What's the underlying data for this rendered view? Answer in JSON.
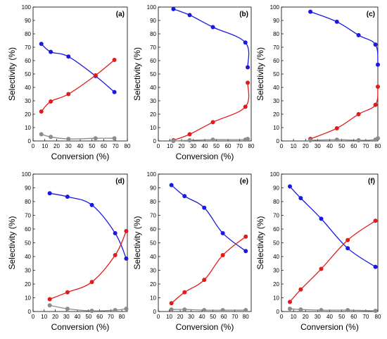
{
  "colors": {
    "blue": "#1a1adf",
    "red": "#e01b1b",
    "gray": "#8c8c8c"
  },
  "chart_data": [
    {
      "type": "line",
      "panel": "(a)",
      "xlabel": "Conversion (%)",
      "ylabel": "Selectivity (%)",
      "xlim": [
        0,
        80
      ],
      "ylim": [
        0,
        100
      ],
      "xticks": [
        "0",
        "10",
        "20",
        "30",
        "40",
        "50",
        "60",
        "70",
        "80"
      ],
      "yticks": [
        "0",
        "10",
        "20",
        "30",
        "40",
        "50",
        "60",
        "70",
        "80",
        "90",
        "100"
      ],
      "series": [
        {
          "color": "blue",
          "points": [
            [
              7,
              72.5
            ],
            [
              15,
              66.5
            ],
            [
              30,
              63
            ],
            [
              53,
              48.5
            ],
            [
              69,
              36.5
            ]
          ]
        },
        {
          "color": "red",
          "points": [
            [
              7,
              22
            ],
            [
              15,
              29.5
            ],
            [
              30,
              35
            ],
            [
              53,
              49
            ],
            [
              69,
              60.5
            ]
          ]
        },
        {
          "color": "gray",
          "points": [
            [
              7,
              5
            ],
            [
              15,
              3
            ],
            [
              30,
              1.5
            ],
            [
              53,
              2
            ],
            [
              69,
              2
            ]
          ]
        }
      ]
    },
    {
      "type": "line",
      "panel": "(b)",
      "xlabel": "Conversion (%)",
      "ylabel": "Selectivity (%)",
      "xlim": [
        0,
        80
      ],
      "ylim": [
        0,
        100
      ],
      "xticks": [
        "0",
        "10",
        "20",
        "30",
        "40",
        "50",
        "60",
        "70",
        "80"
      ],
      "yticks": [
        "0",
        "10",
        "20",
        "30",
        "40",
        "50",
        "60",
        "70",
        "80",
        "90",
        "100"
      ],
      "series": [
        {
          "color": "blue",
          "points": [
            [
              13,
              98.5
            ],
            [
              27,
              94
            ],
            [
              47,
              85
            ],
            [
              75,
              73.5
            ],
            [
              77,
              55
            ]
          ]
        },
        {
          "color": "red",
          "points": [
            [
              13,
              0.5
            ],
            [
              27,
              5
            ],
            [
              47,
              14
            ],
            [
              75,
              25.5
            ],
            [
              77,
              43.5
            ]
          ]
        },
        {
          "color": "gray",
          "points": [
            [
              13,
              0
            ],
            [
              27,
              0.5
            ],
            [
              47,
              1
            ],
            [
              75,
              1
            ],
            [
              77,
              1.5
            ]
          ]
        }
      ]
    },
    {
      "type": "line",
      "panel": "(c)",
      "xlabel": "",
      "ylabel": "Selectivity (%)",
      "xlim": [
        0,
        80
      ],
      "ylim": [
        0,
        100
      ],
      "xticks": [
        "0",
        "10",
        "20",
        "30",
        "40",
        "50",
        "60",
        "70",
        "80"
      ],
      "yticks": [
        "0",
        "10",
        "20",
        "30",
        "40",
        "50",
        "60",
        "70",
        "80",
        "90",
        "100"
      ],
      "series": [
        {
          "color": "blue",
          "points": [
            [
              24,
              96.5
            ],
            [
              46,
              89
            ],
            [
              64,
              79
            ],
            [
              78,
              72
            ],
            [
              80,
              57
            ]
          ]
        },
        {
          "color": "red",
          "points": [
            [
              24,
              1.5
            ],
            [
              46,
              9.5
            ],
            [
              64,
              20
            ],
            [
              78,
              27
            ],
            [
              80,
              40.5
            ]
          ]
        },
        {
          "color": "gray",
          "points": [
            [
              24,
              0.5
            ],
            [
              46,
              1
            ],
            [
              64,
              0.5
            ],
            [
              78,
              1
            ],
            [
              80,
              2
            ]
          ]
        }
      ]
    },
    {
      "type": "line",
      "panel": "(d)",
      "xlabel": "Conversion (%)",
      "ylabel": "Selectivity (%)",
      "xlim": [
        0,
        85
      ],
      "ylim": [
        0,
        100
      ],
      "xticks": [
        "0",
        "10",
        "20",
        "30",
        "40",
        "50",
        "60",
        "70",
        "80"
      ],
      "yticks": [
        "0",
        "10",
        "20",
        "30",
        "40",
        "50",
        "60",
        "70",
        "80",
        "90",
        "100"
      ],
      "series": [
        {
          "color": "blue",
          "points": [
            [
              15,
              86
            ],
            [
              31,
              83.5
            ],
            [
              53,
              77.5
            ],
            [
              74,
              57
            ],
            [
              84,
              38.5
            ]
          ]
        },
        {
          "color": "red",
          "points": [
            [
              15,
              9
            ],
            [
              31,
              14
            ],
            [
              53,
              21.5
            ],
            [
              74,
              41
            ],
            [
              84,
              58.5
            ]
          ]
        },
        {
          "color": "gray",
          "points": [
            [
              15,
              4.5
            ],
            [
              31,
              2
            ],
            [
              53,
              0.5
            ],
            [
              74,
              1
            ],
            [
              84,
              2
            ]
          ]
        }
      ]
    },
    {
      "type": "line",
      "panel": "(e)",
      "xlabel": "Conversion (%)",
      "ylabel": "Selectivity (%)",
      "xlim": [
        0,
        85
      ],
      "ylim": [
        0,
        100
      ],
      "xticks": [
        "0",
        "10",
        "20",
        "30",
        "40",
        "50",
        "60",
        "70",
        "80"
      ],
      "yticks": [
        "0",
        "10",
        "20",
        "30",
        "40",
        "50",
        "60",
        "70",
        "80",
        "90",
        "100"
      ],
      "series": [
        {
          "color": "blue",
          "points": [
            [
              12,
              92
            ],
            [
              24,
              84
            ],
            [
              42,
              75.5
            ],
            [
              59,
              57
            ],
            [
              80,
              44
            ]
          ]
        },
        {
          "color": "red",
          "points": [
            [
              12,
              6
            ],
            [
              24,
              14
            ],
            [
              42,
              23
            ],
            [
              59,
              41
            ],
            [
              80,
              54.5
            ]
          ]
        },
        {
          "color": "gray",
          "points": [
            [
              12,
              1.5
            ],
            [
              24,
              1.5
            ],
            [
              42,
              1
            ],
            [
              59,
              1
            ],
            [
              80,
              1
            ]
          ]
        }
      ]
    },
    {
      "type": "line",
      "panel": "(f)",
      "xlabel": "Conversion (%)",
      "ylabel": "Selectivity (%)",
      "xlim": [
        0,
        80
      ],
      "ylim": [
        0,
        100
      ],
      "xticks": [
        "0",
        "10",
        "20",
        "30",
        "40",
        "50",
        "60",
        "70",
        "80"
      ],
      "yticks": [
        "0",
        "10",
        "20",
        "30",
        "40",
        "50",
        "60",
        "70",
        "80",
        "90",
        "100"
      ],
      "series": [
        {
          "color": "blue",
          "points": [
            [
              7,
              91
            ],
            [
              16,
              82.5
            ],
            [
              33,
              67.5
            ],
            [
              55,
              46
            ],
            [
              78,
              32.5
            ]
          ]
        },
        {
          "color": "red",
          "points": [
            [
              7,
              7
            ],
            [
              16,
              16
            ],
            [
              33,
              31
            ],
            [
              55,
              52
            ],
            [
              78,
              66
            ]
          ]
        },
        {
          "color": "gray",
          "points": [
            [
              7,
              2
            ],
            [
              16,
              1.5
            ],
            [
              33,
              1
            ],
            [
              55,
              1
            ],
            [
              78,
              0.5
            ]
          ]
        }
      ]
    }
  ]
}
